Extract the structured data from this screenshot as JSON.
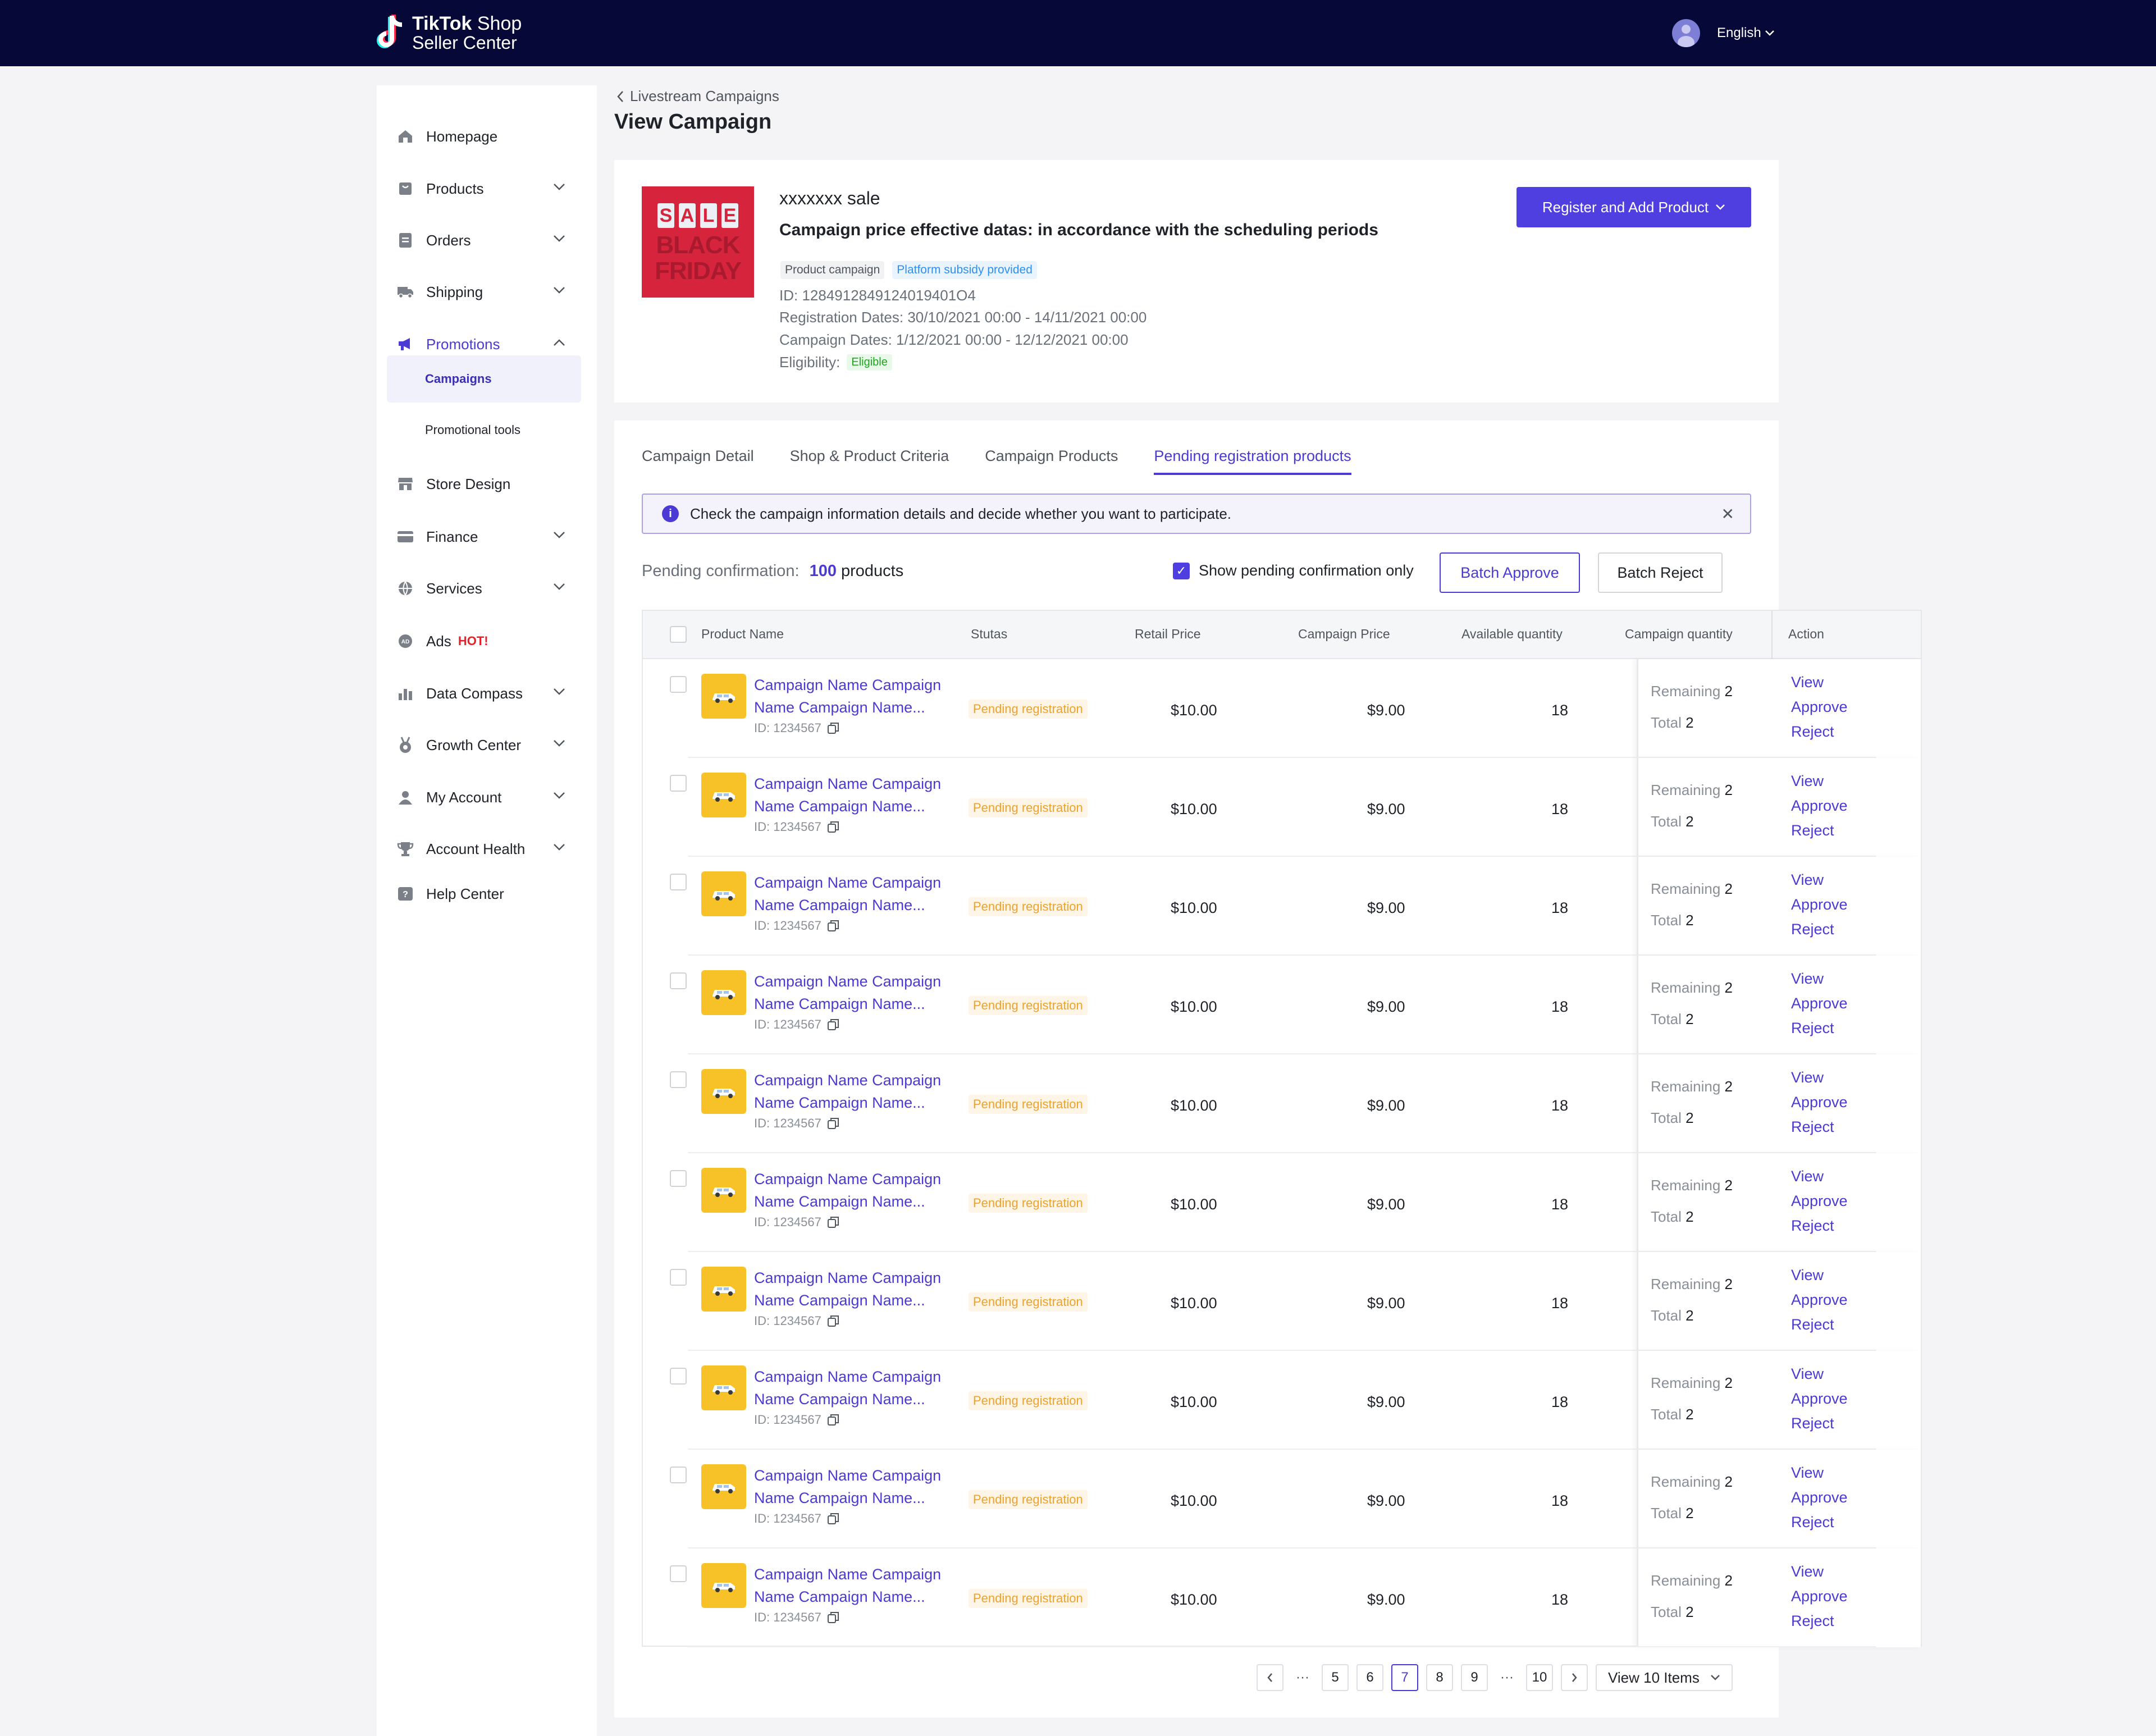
{
  "header": {
    "brand_line1_bold": "TikTok",
    "brand_line1_rest": " Shop",
    "brand_line2": "Seller Center",
    "language": "English"
  },
  "sidebar": {
    "items": [
      {
        "label": "Homepage",
        "icon": "home-icon",
        "chevron": false
      },
      {
        "label": "Products",
        "icon": "bag-icon",
        "chevron": true
      },
      {
        "label": "Orders",
        "icon": "document-icon",
        "chevron": true
      },
      {
        "label": "Shipping",
        "icon": "truck-icon",
        "chevron": true
      },
      {
        "label": "Promotions",
        "icon": "megaphone-icon",
        "chevron": true,
        "expanded": true
      },
      {
        "label": "Store Design",
        "icon": "store-icon",
        "chevron": false
      },
      {
        "label": "Finance",
        "icon": "card-icon",
        "chevron": true
      },
      {
        "label": "Services",
        "icon": "globe-icon",
        "chevron": true
      },
      {
        "label": "Ads",
        "icon": "ads-icon",
        "chevron": false,
        "badge": "HOT!"
      },
      {
        "label": "Data Compass",
        "icon": "chart-icon",
        "chevron": true
      },
      {
        "label": "Growth Center",
        "icon": "medal-icon",
        "chevron": true
      },
      {
        "label": "My Account",
        "icon": "person-icon",
        "chevron": true
      },
      {
        "label": "Account Health",
        "icon": "trophy-icon",
        "chevron": true
      },
      {
        "label": "Help Center",
        "icon": "help-icon",
        "chevron": false
      }
    ],
    "subitems": [
      "Campaigns",
      "Promotional tools"
    ]
  },
  "breadcrumb": "Livestream Campaigns",
  "page_title": "View Campaign",
  "campaign": {
    "image_text_sale": [
      "S",
      "A",
      "L",
      "E"
    ],
    "image_text_black": "BLACK",
    "image_text_friday": "FRIDAY",
    "name": "xxxxxxx sale",
    "subtitle": "Campaign price effective datas: in accordance with the scheduling periods",
    "chip_type": "Product campaign",
    "chip_subsidy": "Platform subsidy provided",
    "id_line": "ID: 1284912849124019401O4",
    "registration_dates": "Registration Dates: 30/10/2021 00:00 - 14/11/2021 00:00",
    "campaign_dates": "Campaign Dates: 1/12/2021 00:00 - 12/12/2021 00:00",
    "eligibility_label": "Eligibility:",
    "eligibility_value": "Eligible",
    "register_button": "Register and Add Product"
  },
  "tabs": [
    "Campaign Detail",
    "Shop & Product Criteria",
    "Campaign Products",
    "Pending registration products"
  ],
  "banner_text": "Check the campaign information details and decide whether you want to participate.",
  "pending": {
    "label": "Pending confirmation:",
    "count": "100",
    "unit": " products"
  },
  "show_only_label": "Show pending confirmation only",
  "batch_approve": "Batch Approve",
  "batch_reject": "Batch Reject",
  "table": {
    "columns": [
      "Product Name",
      "Stutas",
      "Retail Price",
      "Campaign Price",
      "Available quantity",
      "Campaign quantity",
      "Action"
    ],
    "rows": [
      {
        "name_line1": "Campaign Name Campaign",
        "name_line2": "Name Campaign Name...",
        "id": "ID: 1234567",
        "status": "Pending registration",
        "retail": "$10.00",
        "campaign": "$9.00",
        "available": "18",
        "remaining_label": "Remaining",
        "remaining": "2",
        "total_label": "Total",
        "total": "2"
      },
      {
        "name_line1": "Campaign Name Campaign",
        "name_line2": "Name Campaign Name...",
        "id": "ID: 1234567",
        "status": "Pending registration",
        "retail": "$10.00",
        "campaign": "$9.00",
        "available": "18",
        "remaining_label": "Remaining",
        "remaining": "2",
        "total_label": "Total",
        "total": "2"
      },
      {
        "name_line1": "Campaign Name Campaign",
        "name_line2": "Name Campaign Name...",
        "id": "ID: 1234567",
        "status": "Pending registration",
        "retail": "$10.00",
        "campaign": "$9.00",
        "available": "18",
        "remaining_label": "Remaining",
        "remaining": "2",
        "total_label": "Total",
        "total": "2"
      },
      {
        "name_line1": "Campaign Name Campaign",
        "name_line2": "Name Campaign Name...",
        "id": "ID: 1234567",
        "status": "Pending registration",
        "retail": "$10.00",
        "campaign": "$9.00",
        "available": "18",
        "remaining_label": "Remaining",
        "remaining": "2",
        "total_label": "Total",
        "total": "2"
      },
      {
        "name_line1": "Campaign Name Campaign",
        "name_line2": "Name Campaign Name...",
        "id": "ID: 1234567",
        "status": "Pending registration",
        "retail": "$10.00",
        "campaign": "$9.00",
        "available": "18",
        "remaining_label": "Remaining",
        "remaining": "2",
        "total_label": "Total",
        "total": "2"
      },
      {
        "name_line1": "Campaign Name Campaign",
        "name_line2": "Name Campaign Name...",
        "id": "ID: 1234567",
        "status": "Pending registration",
        "retail": "$10.00",
        "campaign": "$9.00",
        "available": "18",
        "remaining_label": "Remaining",
        "remaining": "2",
        "total_label": "Total",
        "total": "2"
      },
      {
        "name_line1": "Campaign Name Campaign",
        "name_line2": "Name Campaign Name...",
        "id": "ID: 1234567",
        "status": "Pending registration",
        "retail": "$10.00",
        "campaign": "$9.00",
        "available": "18",
        "remaining_label": "Remaining",
        "remaining": "2",
        "total_label": "Total",
        "total": "2"
      },
      {
        "name_line1": "Campaign Name Campaign",
        "name_line2": "Name Campaign Name...",
        "id": "ID: 1234567",
        "status": "Pending registration",
        "retail": "$10.00",
        "campaign": "$9.00",
        "available": "18",
        "remaining_label": "Remaining",
        "remaining": "2",
        "total_label": "Total",
        "total": "2"
      },
      {
        "name_line1": "Campaign Name Campaign",
        "name_line2": "Name Campaign Name...",
        "id": "ID: 1234567",
        "status": "Pending registration",
        "retail": "$10.00",
        "campaign": "$9.00",
        "available": "18",
        "remaining_label": "Remaining",
        "remaining": "2",
        "total_label": "Total",
        "total": "2"
      },
      {
        "name_line1": "Campaign Name Campaign",
        "name_line2": "Name Campaign Name...",
        "id": "ID: 1234567",
        "status": "Pending registration",
        "retail": "$10.00",
        "campaign": "$9.00",
        "available": "18",
        "remaining_label": "Remaining",
        "remaining": "2",
        "total_label": "Total",
        "total": "2"
      }
    ],
    "actions": [
      "View",
      "Approve",
      "Reject"
    ]
  },
  "pagination": {
    "pages": [
      "5",
      "6",
      "7",
      "8",
      "9"
    ],
    "last_page": "10",
    "current": "7",
    "ellipsis": "···",
    "page_size": "View 10 Items"
  },
  "colors": {
    "accent": "#4f3ee0",
    "topbar": "#060838",
    "status": "#f0a12a",
    "eligible": "#1fa51f"
  }
}
